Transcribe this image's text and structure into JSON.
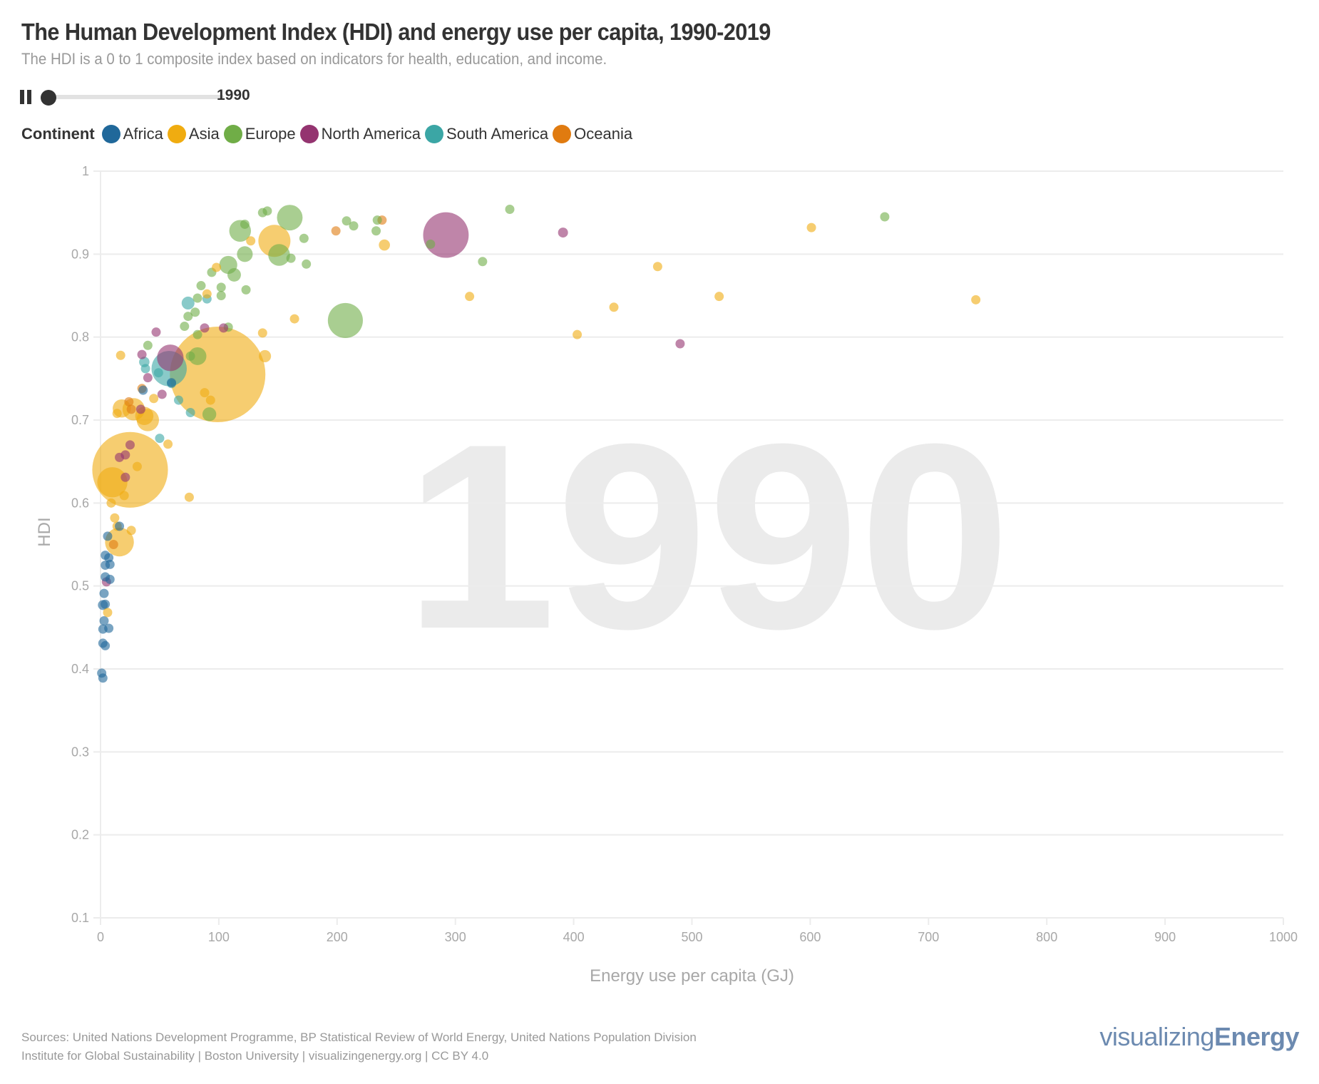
{
  "header": {
    "title": "The Human Development Index (HDI) and energy use per capita, 1990-2019",
    "subtitle": "The HDI is a 0 to 1 composite index based on indicators for health, education, and income."
  },
  "player": {
    "state_icon": "pause-icon",
    "year": "1990",
    "year_range": [
      1990,
      2019
    ],
    "progress": 0
  },
  "legend": {
    "title": "Continent",
    "items": [
      {
        "label": "Africa",
        "color": "#20689a"
      },
      {
        "label": "Asia",
        "color": "#f0ac10"
      },
      {
        "label": "Europe",
        "color": "#70ad47"
      },
      {
        "label": "North America",
        "color": "#943470"
      },
      {
        "label": "South America",
        "color": "#3ba6a5"
      },
      {
        "label": "Oceania",
        "color": "#e07b10"
      }
    ]
  },
  "footer": {
    "sources": "Sources: United Nations Development Programme, BP Statistical Review of World Energy, United Nations Population Division",
    "credits": "Institute for Global Sustainability | Boston University | visualizingenergy.org | CC BY 4.0",
    "brand_light": "visualizing",
    "brand_bold": "Energy"
  },
  "chart_data": {
    "type": "scatter",
    "title": "The Human Development Index (HDI) and energy use per capita, 1990-2019",
    "watermark": "1990",
    "xlabel": "Energy use per capita (GJ)",
    "ylabel": "HDI",
    "xlim": [
      0,
      1000
    ],
    "ylim": [
      0.1,
      1
    ],
    "xticks": [
      "0",
      "100",
      "200",
      "300",
      "400",
      "500",
      "600",
      "700",
      "800",
      "900",
      "1000"
    ],
    "yticks": [
      "0.1",
      "0.2",
      "0.3",
      "0.4",
      "0.5",
      "0.6",
      "0.7",
      "0.8",
      "0.9",
      "1"
    ],
    "grid": true,
    "size_encoding": "population (millions, approx.)",
    "opacity": 0.6,
    "points": [
      {
        "c": "Asia",
        "x": 99,
        "y": 0.755,
        "pop": 1100
      },
      {
        "c": "Asia",
        "x": 25,
        "y": 0.64,
        "pop": 690
      },
      {
        "c": "North America",
        "x": 292,
        "y": 0.923,
        "pop": 250
      },
      {
        "c": "South America",
        "x": 58,
        "y": 0.762,
        "pop": 150
      },
      {
        "c": "Europe",
        "x": 207,
        "y": 0.82,
        "pop": 148
      },
      {
        "c": "Asia",
        "x": 10,
        "y": 0.625,
        "pop": 110
      },
      {
        "c": "Asia",
        "x": 147,
        "y": 0.916,
        "pop": 124
      },
      {
        "c": "Asia",
        "x": 16,
        "y": 0.553,
        "pop": 100
      },
      {
        "c": "Asia",
        "x": 40,
        "y": 0.7,
        "pop": 60
      },
      {
        "c": "Asia",
        "x": 28,
        "y": 0.713,
        "pop": 60
      },
      {
        "c": "Asia",
        "x": 18,
        "y": 0.714,
        "pop": 40
      },
      {
        "c": "Asia",
        "x": 37,
        "y": 0.705,
        "pop": 40
      },
      {
        "c": "Asia",
        "x": 139,
        "y": 0.777,
        "pop": 18
      },
      {
        "c": "Asia",
        "x": 240,
        "y": 0.911,
        "pop": 15
      },
      {
        "c": "North America",
        "x": 59,
        "y": 0.775,
        "pop": 85
      },
      {
        "c": "Europe",
        "x": 160,
        "y": 0.944,
        "pop": 79
      },
      {
        "c": "Europe",
        "x": 118,
        "y": 0.928,
        "pop": 57
      },
      {
        "c": "Europe",
        "x": 151,
        "y": 0.899,
        "pop": 57
      },
      {
        "c": "Europe",
        "x": 108,
        "y": 0.887,
        "pop": 39
      },
      {
        "c": "Europe",
        "x": 122,
        "y": 0.9,
        "pop": 30
      },
      {
        "c": "Europe",
        "x": 113,
        "y": 0.875,
        "pop": 22
      },
      {
        "c": "Europe",
        "x": 82,
        "y": 0.777,
        "pop": 38
      },
      {
        "c": "Europe",
        "x": 76,
        "y": 0.777,
        "pop": 10
      },
      {
        "c": "Europe",
        "x": 92,
        "y": 0.707,
        "pop": 23
      },
      {
        "c": "Europe",
        "x": 122,
        "y": 0.936,
        "pop": 3
      },
      {
        "c": "Europe",
        "x": 137,
        "y": 0.95,
        "pop": 4
      },
      {
        "c": "Europe",
        "x": 141,
        "y": 0.952,
        "pop": 5
      },
      {
        "c": "Europe",
        "x": 172,
        "y": 0.919,
        "pop": 5
      },
      {
        "c": "Europe",
        "x": 161,
        "y": 0.895,
        "pop": 5
      },
      {
        "c": "Europe",
        "x": 174,
        "y": 0.888,
        "pop": 5
      },
      {
        "c": "Europe",
        "x": 123,
        "y": 0.857,
        "pop": 4
      },
      {
        "c": "Europe",
        "x": 102,
        "y": 0.86,
        "pop": 4
      },
      {
        "c": "Europe",
        "x": 102,
        "y": 0.85,
        "pop": 4
      },
      {
        "c": "Europe",
        "x": 94,
        "y": 0.878,
        "pop": 3
      },
      {
        "c": "Europe",
        "x": 85,
        "y": 0.862,
        "pop": 3
      },
      {
        "c": "Europe",
        "x": 82,
        "y": 0.847,
        "pop": 3
      },
      {
        "c": "Europe",
        "x": 80,
        "y": 0.83,
        "pop": 3
      },
      {
        "c": "Europe",
        "x": 74,
        "y": 0.825,
        "pop": 6
      },
      {
        "c": "Europe",
        "x": 71,
        "y": 0.813,
        "pop": 3
      },
      {
        "c": "Europe",
        "x": 82,
        "y": 0.803,
        "pop": 3
      },
      {
        "c": "Europe",
        "x": 108,
        "y": 0.812,
        "pop": 3
      },
      {
        "c": "Europe",
        "x": 40,
        "y": 0.79,
        "pop": 3
      },
      {
        "c": "Europe",
        "x": 208,
        "y": 0.94,
        "pop": 4
      },
      {
        "c": "Europe",
        "x": 214,
        "y": 0.934,
        "pop": 4
      },
      {
        "c": "Europe",
        "x": 234,
        "y": 0.941,
        "pop": 4
      },
      {
        "c": "Europe",
        "x": 233,
        "y": 0.928,
        "pop": 4
      },
      {
        "c": "Europe",
        "x": 323,
        "y": 0.891,
        "pop": 3
      },
      {
        "c": "Europe",
        "x": 346,
        "y": 0.954,
        "pop": 3
      },
      {
        "c": "Europe",
        "x": 663,
        "y": 0.945,
        "pop": 3
      },
      {
        "c": "Europe",
        "x": 279,
        "y": 0.912,
        "pop": 2
      },
      {
        "c": "Oceania",
        "x": 238,
        "y": 0.941,
        "pop": 6
      },
      {
        "c": "Oceania",
        "x": 199,
        "y": 0.928,
        "pop": 4
      },
      {
        "c": "Oceania",
        "x": 24,
        "y": 0.722,
        "pop": 4
      },
      {
        "c": "Oceania",
        "x": 26,
        "y": 0.713,
        "pop": 3
      },
      {
        "c": "Oceania",
        "x": 11,
        "y": 0.55,
        "pop": 4
      },
      {
        "c": "Oceania",
        "x": 35,
        "y": 0.738,
        "pop": 3
      },
      {
        "c": "North America",
        "x": 391,
        "y": 0.926,
        "pop": 12
      },
      {
        "c": "North America",
        "x": 490,
        "y": 0.792,
        "pop": 3
      },
      {
        "c": "North America",
        "x": 88,
        "y": 0.811,
        "pop": 3
      },
      {
        "c": "North America",
        "x": 104,
        "y": 0.811,
        "pop": 3
      },
      {
        "c": "North America",
        "x": 47,
        "y": 0.806,
        "pop": 3
      },
      {
        "c": "North America",
        "x": 35,
        "y": 0.779,
        "pop": 3
      },
      {
        "c": "North America",
        "x": 40,
        "y": 0.751,
        "pop": 3
      },
      {
        "c": "North America",
        "x": 52,
        "y": 0.731,
        "pop": 3
      },
      {
        "c": "North America",
        "x": 34,
        "y": 0.713,
        "pop": 4
      },
      {
        "c": "North America",
        "x": 25,
        "y": 0.67,
        "pop": 4
      },
      {
        "c": "North America",
        "x": 21,
        "y": 0.658,
        "pop": 4
      },
      {
        "c": "North America",
        "x": 16,
        "y": 0.655,
        "pop": 4
      },
      {
        "c": "North America",
        "x": 21,
        "y": 0.631,
        "pop": 4
      },
      {
        "c": "North America",
        "x": 5,
        "y": 0.505,
        "pop": 6
      },
      {
        "c": "South America",
        "x": 74,
        "y": 0.841,
        "pop": 20
      },
      {
        "c": "South America",
        "x": 90,
        "y": 0.846,
        "pop": 3
      },
      {
        "c": "South America",
        "x": 37,
        "y": 0.77,
        "pop": 13
      },
      {
        "c": "South America",
        "x": 38,
        "y": 0.762,
        "pop": 8
      },
      {
        "c": "South America",
        "x": 49,
        "y": 0.757,
        "pop": 6
      },
      {
        "c": "South America",
        "x": 60,
        "y": 0.744,
        "pop": 10
      },
      {
        "c": "South America",
        "x": 66,
        "y": 0.724,
        "pop": 4
      },
      {
        "c": "South America",
        "x": 76,
        "y": 0.709,
        "pop": 6
      },
      {
        "c": "South America",
        "x": 50,
        "y": 0.678,
        "pop": 4
      },
      {
        "c": "Asia",
        "x": 601,
        "y": 0.932,
        "pop": 3
      },
      {
        "c": "Asia",
        "x": 740,
        "y": 0.845,
        "pop": 3
      },
      {
        "c": "Asia",
        "x": 471,
        "y": 0.885,
        "pop": 3
      },
      {
        "c": "Asia",
        "x": 523,
        "y": 0.849,
        "pop": 3
      },
      {
        "c": "Asia",
        "x": 434,
        "y": 0.836,
        "pop": 3
      },
      {
        "c": "Asia",
        "x": 403,
        "y": 0.803,
        "pop": 3
      },
      {
        "c": "Asia",
        "x": 312,
        "y": 0.849,
        "pop": 3
      },
      {
        "c": "Asia",
        "x": 164,
        "y": 0.822,
        "pop": 3
      },
      {
        "c": "Asia",
        "x": 137,
        "y": 0.805,
        "pop": 4
      },
      {
        "c": "Asia",
        "x": 127,
        "y": 0.916,
        "pop": 2
      },
      {
        "c": "Asia",
        "x": 98,
        "y": 0.884,
        "pop": 2
      },
      {
        "c": "Asia",
        "x": 90,
        "y": 0.852,
        "pop": 2
      },
      {
        "c": "Asia",
        "x": 88,
        "y": 0.733,
        "pop": 3
      },
      {
        "c": "Asia",
        "x": 93,
        "y": 0.724,
        "pop": 4
      },
      {
        "c": "Asia",
        "x": 57,
        "y": 0.671,
        "pop": 4
      },
      {
        "c": "Asia",
        "x": 75,
        "y": 0.607,
        "pop": 3
      },
      {
        "c": "Asia",
        "x": 17,
        "y": 0.778,
        "pop": 3
      },
      {
        "c": "Asia",
        "x": 31,
        "y": 0.644,
        "pop": 4
      },
      {
        "c": "Asia",
        "x": 20,
        "y": 0.609,
        "pop": 4
      },
      {
        "c": "Asia",
        "x": 26,
        "y": 0.567,
        "pop": 3
      },
      {
        "c": "Asia",
        "x": 12,
        "y": 0.582,
        "pop": 4
      },
      {
        "c": "Asia",
        "x": 9,
        "y": 0.6,
        "pop": 8
      },
      {
        "c": "Asia",
        "x": 14,
        "y": 0.572,
        "pop": 5
      },
      {
        "c": "Asia",
        "x": 6,
        "y": 0.468,
        "pop": 3
      },
      {
        "c": "Asia",
        "x": 14,
        "y": 0.708,
        "pop": 3
      },
      {
        "c": "Asia",
        "x": 45,
        "y": 0.726,
        "pop": 6
      },
      {
        "c": "Africa",
        "x": 4,
        "y": 0.537,
        "pop": 5
      },
      {
        "c": "Africa",
        "x": 7,
        "y": 0.534,
        "pop": 5
      },
      {
        "c": "Africa",
        "x": 4,
        "y": 0.525,
        "pop": 8
      },
      {
        "c": "Africa",
        "x": 8,
        "y": 0.526,
        "pop": 5
      },
      {
        "c": "Africa",
        "x": 4,
        "y": 0.511,
        "pop": 4
      },
      {
        "c": "Africa",
        "x": 8,
        "y": 0.508,
        "pop": 6
      },
      {
        "c": "Africa",
        "x": 3,
        "y": 0.491,
        "pop": 3
      },
      {
        "c": "Africa",
        "x": 2,
        "y": 0.477,
        "pop": 12
      },
      {
        "c": "Africa",
        "x": 4,
        "y": 0.478,
        "pop": 6
      },
      {
        "c": "Africa",
        "x": 3,
        "y": 0.458,
        "pop": 4
      },
      {
        "c": "Africa",
        "x": 2,
        "y": 0.448,
        "pop": 4
      },
      {
        "c": "Africa",
        "x": 7,
        "y": 0.449,
        "pop": 4
      },
      {
        "c": "Africa",
        "x": 2,
        "y": 0.431,
        "pop": 5
      },
      {
        "c": "Africa",
        "x": 4,
        "y": 0.428,
        "pop": 4
      },
      {
        "c": "Africa",
        "x": 1,
        "y": 0.395,
        "pop": 4
      },
      {
        "c": "Africa",
        "x": 2,
        "y": 0.389,
        "pop": 4
      },
      {
        "c": "Africa",
        "x": 6,
        "y": 0.56,
        "pop": 4
      },
      {
        "c": "Africa",
        "x": 16,
        "y": 0.572,
        "pop": 3
      },
      {
        "c": "Africa",
        "x": 36,
        "y": 0.736,
        "pop": 3
      },
      {
        "c": "Africa",
        "x": 60,
        "y": 0.745,
        "pop": 3
      }
    ]
  }
}
